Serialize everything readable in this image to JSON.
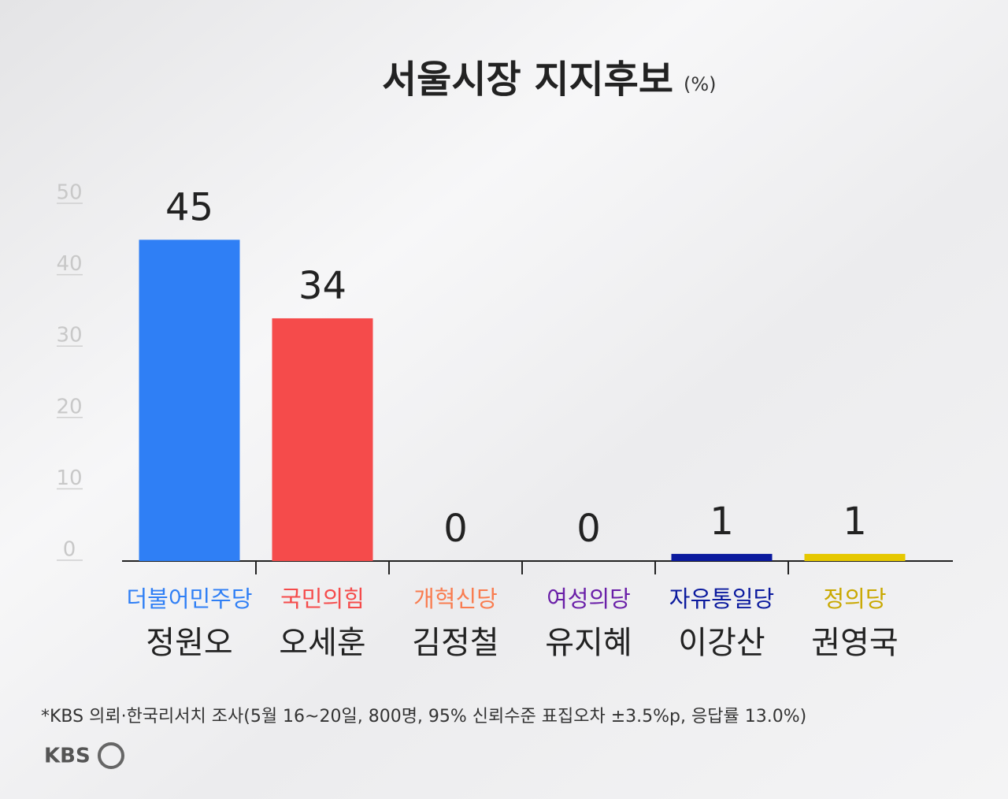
{
  "chart_data": {
    "type": "bar",
    "title": "서울시장 지지후보",
    "unit": "(%)",
    "categories": [
      "정원오",
      "오세훈",
      "김정철",
      "유지혜",
      "이강산",
      "권영국"
    ],
    "parties": [
      "더불어민주당",
      "국민의힘",
      "개혁신당",
      "여성의당",
      "자유통일당",
      "정의당"
    ],
    "colors": [
      "#2f7ff5",
      "#f54b4b",
      "#f97c4f",
      "#6a1fa8",
      "#0b1a9e",
      "#e6c800"
    ],
    "party_colors": [
      "#2f7ff5",
      "#f54b4b",
      "#f97c4f",
      "#6a1fa8",
      "#0b1a9e",
      "#c9a800"
    ],
    "values": [
      45,
      34,
      0,
      0,
      1,
      1
    ],
    "ylim": [
      0,
      50
    ],
    "yticks": [
      0,
      10,
      20,
      30,
      40,
      50
    ],
    "footnote": "*KBS 의뢰·한국리서치 조사(5월 16~20일, 800명, 95% 신뢰수준 표집오차 ±3.5%p, 응답률 13.0%)",
    "logo": "KBS"
  }
}
